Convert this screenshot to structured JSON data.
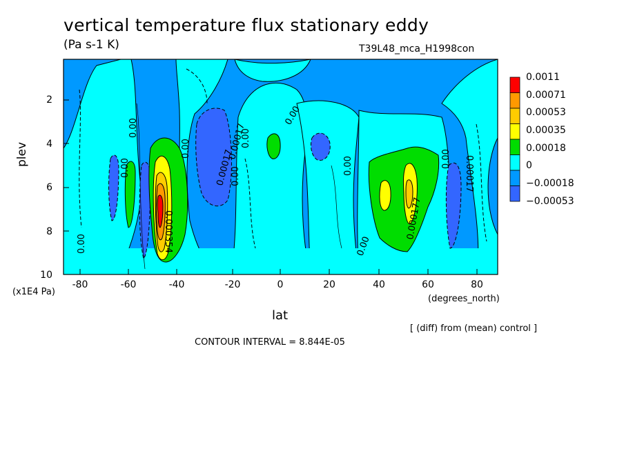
{
  "chart_data": {
    "type": "heatmap",
    "title": "vertical temperature flux stationary eddy",
    "units": "(Pa s-1 K)",
    "run_label": "T39L48_mca_H1998con",
    "xlabel": "lat",
    "x_units": "(degrees_north)",
    "ylabel": "plev",
    "y_units": "(x1E4 Pa)",
    "xlim": [
      -90,
      90
    ],
    "ylim": [
      10,
      0
    ],
    "x_ticks": [
      "-80",
      "-60",
      "-40",
      "-20",
      "0",
      "20",
      "40",
      "60",
      "80"
    ],
    "x_tick_values": [
      -80,
      -60,
      -40,
      -20,
      0,
      20,
      40,
      60,
      80
    ],
    "y_ticks": [
      "2",
      "4",
      "6",
      "8",
      "10"
    ],
    "y_tick_values": [
      2,
      4,
      6,
      8,
      10
    ],
    "legend": {
      "labels": [
        "0.0011",
        "0.00071",
        "0.00053",
        "0.00035",
        "0.00018",
        "0",
        "−0.00018",
        "−0.00053"
      ],
      "colors": [
        "#ff0000",
        "#ff9900",
        "#ffcc00",
        "#ffff00",
        "#00dd00",
        "#00ffff",
        "#0099ff",
        "#3366ff"
      ]
    },
    "contour_labels": [
      "0.00",
      "0.00",
      "0.00",
      "0.00",
      "0.00",
      "0.00",
      "0.00",
      "0.00",
      "0.00",
      "0.00",
      "0.00017",
      "0.00017",
      "0.000354",
      "0.000177",
      "0.00017"
    ],
    "note": "[ (diff) from (mean) control ]",
    "contour_interval": "CONTOUR INTERVAL = 8.844E-05",
    "features": [
      {
        "name": "south-positive-core",
        "lat": -50,
        "plev": 6.8,
        "value": 0.0011
      },
      {
        "name": "north-positive-core",
        "lat": 52,
        "plev": 6.0,
        "value": 0.00053
      },
      {
        "name": "south-negative-band",
        "lat": -28,
        "plev": 5.0,
        "value": -0.00053
      },
      {
        "name": "tropical-negative",
        "lat": 15,
        "plev": 4.0,
        "value": -0.00053
      },
      {
        "name": "tropical-positive",
        "lat": -2,
        "plev": 4.0,
        "value": 0.00018
      }
    ]
  }
}
